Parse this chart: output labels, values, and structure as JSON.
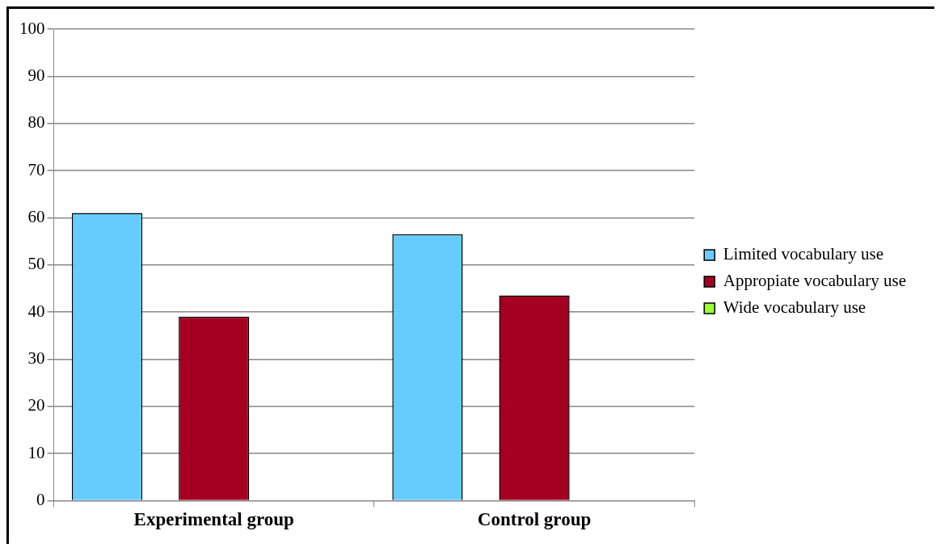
{
  "chart_data": {
    "type": "bar",
    "categories": [
      "Experimental group",
      "Control group"
    ],
    "series": [
      {
        "name": "Limited vocabulary use",
        "color": "#66ccff",
        "values": [
          61,
          56.5
        ]
      },
      {
        "name": "Appropiate vocabulary use",
        "color": "#a50021",
        "values": [
          39,
          43.5
        ]
      },
      {
        "name": "Wide vocabulary use",
        "color": "#99ff33",
        "values": [
          0,
          0
        ]
      }
    ],
    "ylim": [
      0,
      100
    ],
    "yticks": [
      0,
      10,
      20,
      30,
      40,
      50,
      60,
      70,
      80,
      90,
      100
    ],
    "grid": "y",
    "legend": "right"
  }
}
